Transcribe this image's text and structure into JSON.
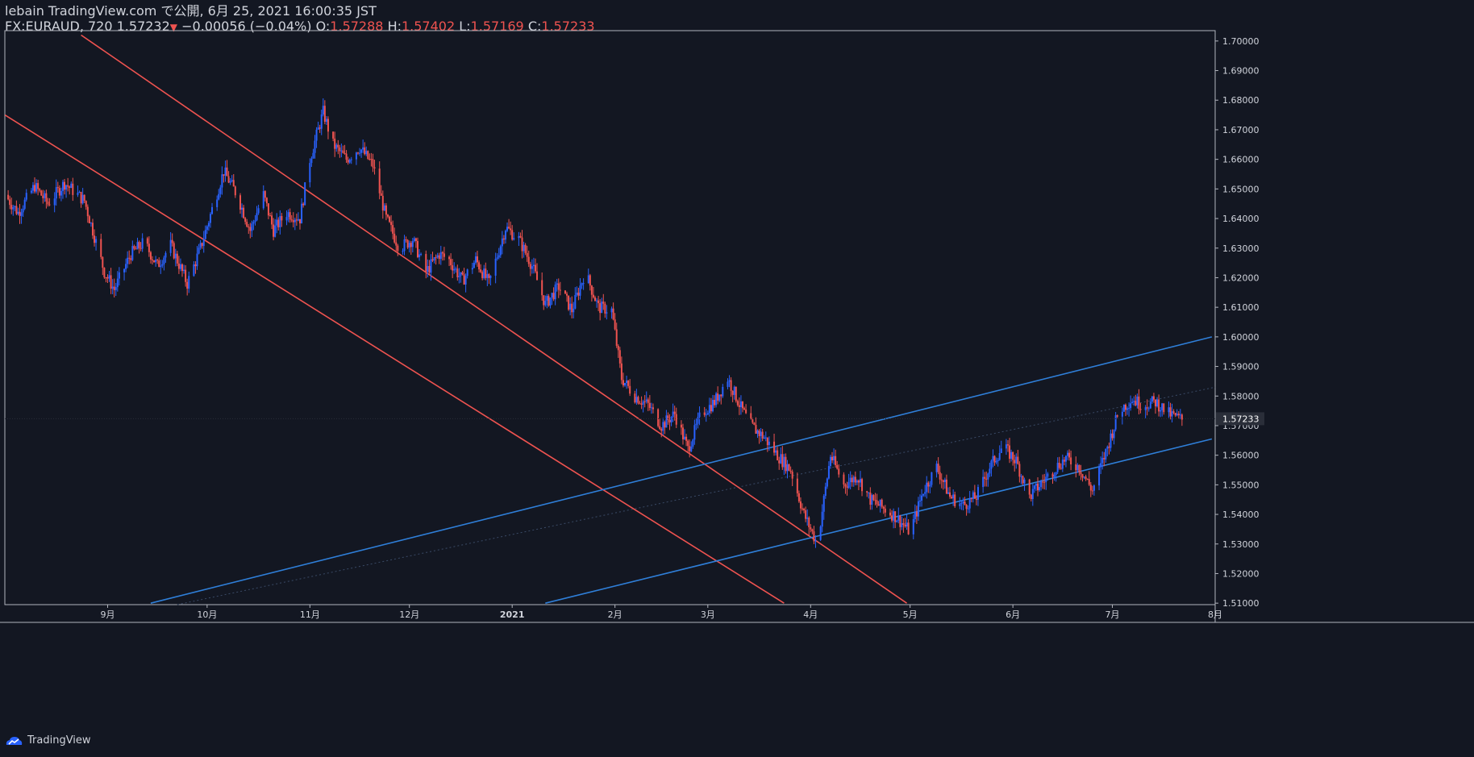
{
  "header": {
    "publisher": "lebain TradingView.com で公開, 6月 25, 2021 16:00:35 JST",
    "symbol": "FX:EURAUD, 720",
    "last": "1.57232",
    "arrow": "▼",
    "change": "−0.00056 (−0.04%)",
    "o_label": "O:",
    "o": "1.57288",
    "h_label": "H:",
    "h": "1.57402",
    "l_label": "L:",
    "l": "1.57169",
    "c_label": "C:",
    "c": "1.57233"
  },
  "footer": {
    "brand": "TradingView"
  },
  "colors": {
    "background": "#131722",
    "up": "#2962ff",
    "down": "#ef5350",
    "grid_text": "#d1d4dc",
    "channel_down": "#ef5350",
    "channel_up": "#2f7fd9"
  },
  "chart_data": {
    "type": "candlestick",
    "symbol": "FX:EURAUD",
    "interval": "720",
    "ylim": [
      1.5095,
      1.7035
    ],
    "xlim": [
      "2020-08-01",
      "2021-08-01"
    ],
    "y_ticks": [
      "1.70000",
      "1.69000",
      "1.68000",
      "1.67000",
      "1.66000",
      "1.65000",
      "1.64000",
      "1.63000",
      "1.62000",
      "1.61000",
      "1.60000",
      "1.59000",
      "1.58000",
      "1.57000",
      "1.56000",
      "1.55000",
      "1.54000",
      "1.53000",
      "1.52000",
      "1.51000"
    ],
    "x_ticks": [
      {
        "label": "9月",
        "date": "2020-09-01"
      },
      {
        "label": "10月",
        "date": "2020-10-01"
      },
      {
        "label": "11月",
        "date": "2020-11-01"
      },
      {
        "label": "12月",
        "date": "2020-12-01"
      },
      {
        "label": "2021",
        "date": "2021-01-01"
      },
      {
        "label": "2月",
        "date": "2021-02-01"
      },
      {
        "label": "3月",
        "date": "2021-03-01"
      },
      {
        "label": "4月",
        "date": "2021-04-01"
      },
      {
        "label": "5月",
        "date": "2021-05-01"
      },
      {
        "label": "6月",
        "date": "2021-06-01"
      },
      {
        "label": "7月",
        "date": "2021-07-01"
      },
      {
        "label": "8月",
        "date": "2021-08-01"
      }
    ],
    "last_price": "1.57233",
    "price_path": [
      [
        "2020-08-01",
        1.648
      ],
      [
        "2020-08-05",
        1.642
      ],
      [
        "2020-08-10",
        1.651
      ],
      [
        "2020-08-14",
        1.645
      ],
      [
        "2020-08-19",
        1.652
      ],
      [
        "2020-08-25",
        1.646
      ],
      [
        "2020-08-31",
        1.622
      ],
      [
        "2020-09-03",
        1.616
      ],
      [
        "2020-09-08",
        1.628
      ],
      [
        "2020-09-12",
        1.632
      ],
      [
        "2020-09-16",
        1.624
      ],
      [
        "2020-09-20",
        1.631
      ],
      [
        "2020-09-25",
        1.618
      ],
      [
        "2020-09-29",
        1.63
      ],
      [
        "2020-10-03",
        1.645
      ],
      [
        "2020-10-06",
        1.656
      ],
      [
        "2020-10-10",
        1.648
      ],
      [
        "2020-10-14",
        1.636
      ],
      [
        "2020-10-18",
        1.648
      ],
      [
        "2020-10-21",
        1.636
      ],
      [
        "2020-10-25",
        1.642
      ],
      [
        "2020-10-29",
        1.64
      ],
      [
        "2020-11-01",
        1.66
      ],
      [
        "2020-11-05",
        1.676
      ],
      [
        "2020-11-08",
        1.665
      ],
      [
        "2020-11-12",
        1.66
      ],
      [
        "2020-11-16",
        1.664
      ],
      [
        "2020-11-20",
        1.658
      ],
      [
        "2020-11-24",
        1.64
      ],
      [
        "2020-11-28",
        1.63
      ],
      [
        "2020-12-02",
        1.633
      ],
      [
        "2020-12-06",
        1.622
      ],
      [
        "2020-12-10",
        1.628
      ],
      [
        "2020-12-13",
        1.626
      ],
      [
        "2020-12-17",
        1.619
      ],
      [
        "2020-12-21",
        1.626
      ],
      [
        "2020-12-25",
        1.618
      ],
      [
        "2020-12-30",
        1.637
      ],
      [
        "2021-01-03",
        1.633
      ],
      [
        "2021-01-07",
        1.624
      ],
      [
        "2021-01-11",
        1.611
      ],
      [
        "2021-01-15",
        1.617
      ],
      [
        "2021-01-19",
        1.609
      ],
      [
        "2021-01-23",
        1.622
      ],
      [
        "2021-01-27",
        1.61
      ],
      [
        "2021-01-31",
        1.609
      ],
      [
        "2021-02-03",
        1.586
      ],
      [
        "2021-02-07",
        1.58
      ],
      [
        "2021-02-11",
        1.577
      ],
      [
        "2021-02-15",
        1.57
      ],
      [
        "2021-02-19",
        1.574
      ],
      [
        "2021-02-23",
        1.562
      ],
      [
        "2021-02-27",
        1.574
      ],
      [
        "2021-03-03",
        1.578
      ],
      [
        "2021-03-07",
        1.586
      ],
      [
        "2021-03-11",
        1.576
      ],
      [
        "2021-03-14",
        1.57
      ],
      [
        "2021-03-18",
        1.566
      ],
      [
        "2021-03-22",
        1.56
      ],
      [
        "2021-03-26",
        1.555
      ],
      [
        "2021-03-30",
        1.54
      ],
      [
        "2021-04-03",
        1.53
      ],
      [
        "2021-04-07",
        1.56
      ],
      [
        "2021-04-11",
        1.55
      ],
      [
        "2021-04-15",
        1.553
      ],
      [
        "2021-04-19",
        1.545
      ],
      [
        "2021-04-23",
        1.542
      ],
      [
        "2021-04-27",
        1.539
      ],
      [
        "2021-05-01",
        1.534
      ],
      [
        "2021-05-05",
        1.548
      ],
      [
        "2021-05-09",
        1.556
      ],
      [
        "2021-05-13",
        1.546
      ],
      [
        "2021-05-17",
        1.543
      ],
      [
        "2021-05-21",
        1.546
      ],
      [
        "2021-05-25",
        1.556
      ],
      [
        "2021-05-29",
        1.563
      ],
      [
        "2021-06-02",
        1.558
      ],
      [
        "2021-06-06",
        1.546
      ],
      [
        "2021-06-10",
        1.551
      ],
      [
        "2021-06-14",
        1.556
      ],
      [
        "2021-06-17",
        1.559
      ],
      [
        "2021-06-21",
        1.556
      ],
      [
        "2021-06-25",
        1.548
      ],
      [
        "2021-06-29",
        1.561
      ],
      [
        "2021-07-03",
        1.575
      ],
      [
        "2021-07-07",
        1.579
      ],
      [
        "2021-07-10",
        1.577
      ],
      [
        "2021-07-14",
        1.578
      ],
      [
        "2021-07-18",
        1.574
      ],
      [
        "2021-07-22",
        1.572
      ]
    ],
    "annotations": [
      {
        "type": "trendline",
        "color": "#ef5350",
        "from": [
          "2020-08-24",
          1.702
        ],
        "to": [
          "2021-04-30",
          1.51
        ]
      },
      {
        "type": "trendline",
        "color": "#ef5350",
        "from": [
          "2020-08-01",
          1.675
        ],
        "to": [
          "2021-03-24",
          1.51
        ]
      },
      {
        "type": "trendline",
        "color": "#2f7fd9",
        "from": [
          "2020-09-14",
          1.51
        ],
        "to": [
          "2021-07-31",
          1.6
        ]
      },
      {
        "type": "trendline",
        "color": "#2f7fd9",
        "from": [
          "2021-01-11",
          1.51
        ],
        "to": [
          "2021-07-31",
          1.5655
        ]
      }
    ]
  }
}
